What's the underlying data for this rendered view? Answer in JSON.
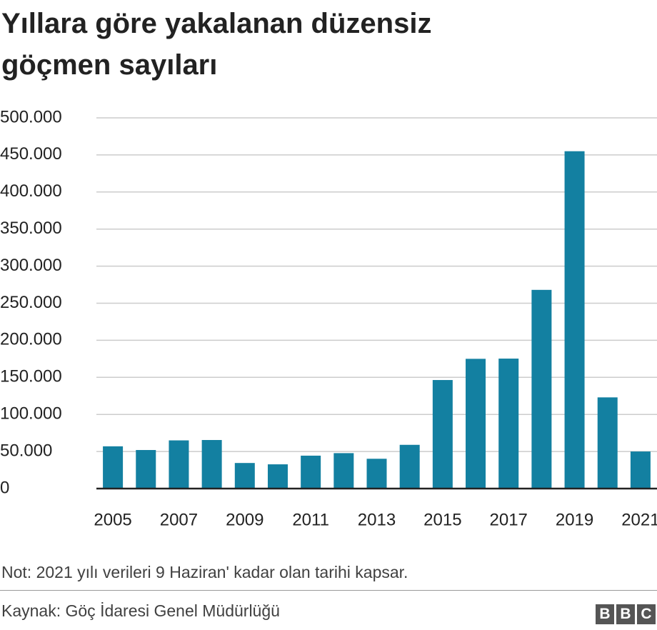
{
  "chart_data": {
    "type": "bar",
    "title": "Yıllara göre yakalanan düzensiz göçmen sayıları",
    "categories": [
      "2005",
      null,
      "2007",
      null,
      "2009",
      null,
      "2011",
      null,
      "2013",
      null,
      "2015",
      null,
      "2017",
      null,
      "2019",
      null,
      "2021"
    ],
    "values": [
      57000,
      52000,
      65000,
      65500,
      34500,
      32700,
      44400,
      47800,
      40200,
      59000,
      146400,
      175000,
      175300,
      268000,
      455000,
      123000,
      50000
    ],
    "color": "#1380a1",
    "ylim": [
      0,
      500000
    ],
    "yticks": [
      0,
      {
        "value": 50000,
        "label": "50.000"
      },
      {
        "value": 100000,
        "label": "100.000"
      },
      {
        "value": 150000,
        "label": "150.000"
      },
      {
        "value": 200000,
        "label": "200.000"
      },
      {
        "value": 250000,
        "label": "250.000"
      },
      {
        "value": 300000,
        "label": "300.000"
      },
      {
        "value": 350000,
        "label": "350.000"
      },
      {
        "value": 400000,
        "label": "400.000"
      },
      {
        "value": 450000,
        "label": "450.000"
      },
      {
        "value": 500000,
        "label": "500.000"
      }
    ],
    "grid": true,
    "note": "Not: 2021 yılı verileri 9 Haziran' kadar olan tarihi kapsar.",
    "source": "Kaynak: Göç İdaresi Genel Müdürlüğü",
    "logo": "BBC"
  }
}
